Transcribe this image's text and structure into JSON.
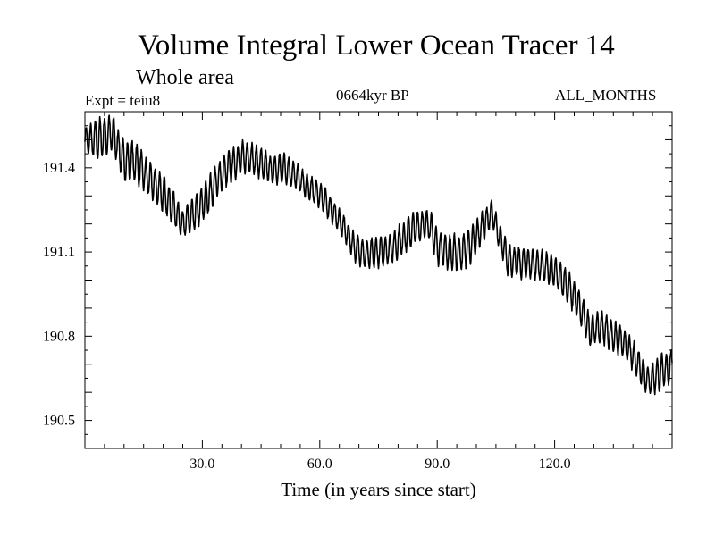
{
  "chart_data": {
    "type": "line",
    "title": "Volume Integral Lower Ocean Tracer 14",
    "subtitle": "Whole area",
    "expt_label": "Expt = teiu8",
    "period_label": "0664kyr BP",
    "months_label": "ALL_MONTHS",
    "xlabel": "Time (in years since start)",
    "ylabel": "",
    "xlim": [
      0,
      150
    ],
    "ylim": [
      190.4,
      191.6
    ],
    "x_ticks": [
      30,
      60,
      90,
      120
    ],
    "x_tick_labels": [
      "30.0",
      "60.0",
      "90.0",
      "120.0"
    ],
    "y_ticks": [
      190.5,
      190.8,
      191.1,
      191.4
    ],
    "y_tick_labels": [
      "190.5",
      "190.8",
      "191.1",
      "191.4"
    ],
    "grid": false,
    "line_color": "#000000",
    "series": [
      {
        "name": "Lower Ocean Tracer 14",
        "envelope_x": [
          0,
          3,
          7,
          10,
          13,
          16,
          19,
          22,
          25,
          28,
          31,
          34,
          37,
          40,
          42,
          45,
          48,
          51,
          54,
          57,
          60,
          63,
          66,
          69,
          72,
          75,
          78,
          81,
          84,
          87,
          88,
          90,
          93,
          96,
          99,
          102,
          104,
          106,
          108,
          111,
          114,
          117,
          120,
          123,
          126,
          129,
          132,
          135,
          138,
          141,
          144,
          147,
          150
        ],
        "envelope_min": [
          191.45,
          191.42,
          191.45,
          191.35,
          191.34,
          191.3,
          191.25,
          191.2,
          191.14,
          191.17,
          191.22,
          191.29,
          191.34,
          191.37,
          191.38,
          191.35,
          191.33,
          191.34,
          191.32,
          191.28,
          191.25,
          191.2,
          191.14,
          191.06,
          191.03,
          191.04,
          191.05,
          191.08,
          191.12,
          191.14,
          191.14,
          191.05,
          191.03,
          191.02,
          191.06,
          191.14,
          191.19,
          191.1,
          191.01,
          191.0,
          191.0,
          190.99,
          190.97,
          190.92,
          190.85,
          190.76,
          190.77,
          190.74,
          190.71,
          190.65,
          190.58,
          190.6,
          190.63
        ],
        "envelope_max": [
          191.55,
          191.58,
          191.6,
          191.5,
          191.5,
          191.43,
          191.4,
          191.34,
          191.26,
          191.3,
          191.36,
          191.43,
          191.47,
          191.5,
          191.5,
          191.48,
          191.45,
          191.46,
          191.42,
          191.38,
          191.36,
          191.3,
          191.24,
          191.17,
          191.15,
          191.16,
          191.17,
          191.21,
          191.25,
          191.26,
          191.26,
          191.19,
          191.17,
          191.17,
          191.2,
          191.26,
          191.29,
          191.2,
          191.14,
          191.12,
          191.12,
          191.11,
          191.09,
          191.05,
          190.98,
          190.88,
          190.9,
          190.86,
          190.83,
          190.77,
          190.7,
          190.74,
          190.76
        ],
        "cycles_per_year": 0.85
      }
    ]
  }
}
